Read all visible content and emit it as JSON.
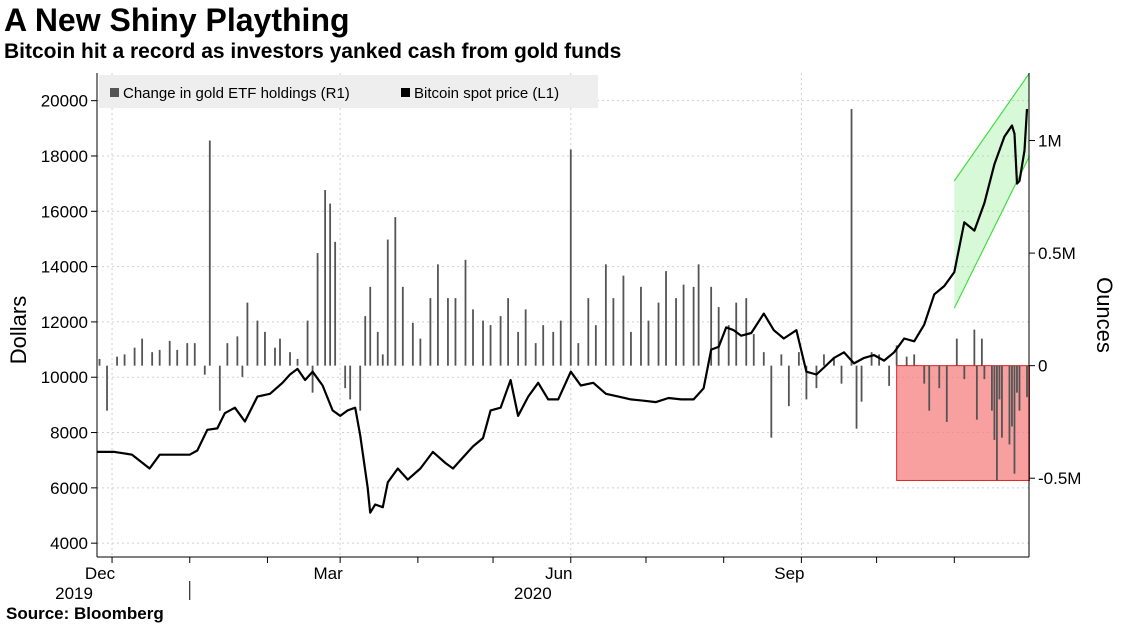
{
  "title": "A New Shiny Plaything",
  "subtitle": "Bitcoin hit a record as investors yanked cash from gold funds",
  "source": "Source: Bloomberg",
  "chart_data": {
    "type": "bar+line",
    "legend": {
      "placement": "top-left",
      "entries": [
        {
          "label": "Change in gold ETF holdings (R1)",
          "color": "#555555"
        },
        {
          "label": "Bitcoin spot price (L1)",
          "color": "#000000"
        }
      ]
    },
    "left_axis": {
      "label": "Dollars",
      "range": [
        3500,
        21000
      ],
      "ticks": [
        4000,
        6000,
        8000,
        10000,
        12000,
        14000,
        16000,
        18000,
        20000
      ]
    },
    "right_axis": {
      "label": "Ounces",
      "range": [
        -0.85,
        1.3
      ],
      "ticks": [
        {
          "value": -0.5,
          "label": "-0.5M"
        },
        {
          "value": 0,
          "label": "0"
        },
        {
          "value": 0.5,
          "label": "0.5M"
        },
        {
          "value": 1,
          "label": "1M"
        }
      ]
    },
    "x_axis": {
      "start": "2019-11-25",
      "end": "2020-11-30",
      "month_labels": [
        {
          "date": "2019-12-01",
          "label": "Dec"
        },
        {
          "date": "2020-03-01",
          "label": "Mar"
        },
        {
          "date": "2020-06-01",
          "label": "Jun"
        },
        {
          "date": "2020-09-01",
          "label": "Sep"
        }
      ],
      "year_labels": [
        {
          "date": "2019-12-01",
          "label": "2019"
        },
        {
          "date": "2020-06-01",
          "label": "2020"
        }
      ]
    },
    "grid": true,
    "series": [
      {
        "name": "Bitcoin spot price (L1)",
        "axis": "left",
        "type": "line",
        "color": "#000000",
        "points": [
          [
            "2019-11-25",
            7300
          ],
          [
            "2019-12-02",
            7300
          ],
          [
            "2019-12-09",
            7200
          ],
          [
            "2019-12-16",
            6700
          ],
          [
            "2019-12-20",
            7200
          ],
          [
            "2019-12-25",
            7200
          ],
          [
            "2020-01-01",
            7200
          ],
          [
            "2020-01-04",
            7350
          ],
          [
            "2020-01-08",
            8100
          ],
          [
            "2020-01-12",
            8150
          ],
          [
            "2020-01-15",
            8700
          ],
          [
            "2020-01-19",
            8900
          ],
          [
            "2020-01-23",
            8400
          ],
          [
            "2020-01-28",
            9300
          ],
          [
            "2020-02-02",
            9400
          ],
          [
            "2020-02-07",
            9800
          ],
          [
            "2020-02-10",
            10100
          ],
          [
            "2020-02-13",
            10300
          ],
          [
            "2020-02-16",
            9900
          ],
          [
            "2020-02-19",
            10200
          ],
          [
            "2020-02-23",
            9700
          ],
          [
            "2020-02-27",
            8800
          ],
          [
            "2020-03-01",
            8600
          ],
          [
            "2020-03-04",
            8800
          ],
          [
            "2020-03-07",
            8900
          ],
          [
            "2020-03-09",
            7900
          ],
          [
            "2020-03-12",
            6000
          ],
          [
            "2020-03-13",
            5100
          ],
          [
            "2020-03-15",
            5400
          ],
          [
            "2020-03-18",
            5300
          ],
          [
            "2020-03-20",
            6200
          ],
          [
            "2020-03-24",
            6700
          ],
          [
            "2020-03-28",
            6300
          ],
          [
            "2020-04-02",
            6700
          ],
          [
            "2020-04-07",
            7300
          ],
          [
            "2020-04-12",
            6900
          ],
          [
            "2020-04-15",
            6700
          ],
          [
            "2020-04-19",
            7100
          ],
          [
            "2020-04-23",
            7500
          ],
          [
            "2020-04-27",
            7800
          ],
          [
            "2020-04-30",
            8800
          ],
          [
            "2020-05-04",
            8900
          ],
          [
            "2020-05-08",
            9900
          ],
          [
            "2020-05-11",
            8600
          ],
          [
            "2020-05-15",
            9300
          ],
          [
            "2020-05-19",
            9800
          ],
          [
            "2020-05-23",
            9200
          ],
          [
            "2020-05-27",
            9200
          ],
          [
            "2020-06-01",
            10200
          ],
          [
            "2020-06-05",
            9700
          ],
          [
            "2020-06-10",
            9800
          ],
          [
            "2020-06-15",
            9400
          ],
          [
            "2020-06-20",
            9300
          ],
          [
            "2020-06-25",
            9200
          ],
          [
            "2020-06-30",
            9150
          ],
          [
            "2020-07-05",
            9100
          ],
          [
            "2020-07-10",
            9250
          ],
          [
            "2020-07-15",
            9200
          ],
          [
            "2020-07-20",
            9200
          ],
          [
            "2020-07-24",
            9600
          ],
          [
            "2020-07-27",
            11000
          ],
          [
            "2020-07-30",
            11100
          ],
          [
            "2020-08-02",
            11800
          ],
          [
            "2020-08-05",
            11700
          ],
          [
            "2020-08-08",
            11500
          ],
          [
            "2020-08-12",
            11600
          ],
          [
            "2020-08-17",
            12300
          ],
          [
            "2020-08-21",
            11700
          ],
          [
            "2020-08-25",
            11400
          ],
          [
            "2020-08-30",
            11700
          ],
          [
            "2020-09-03",
            10200
          ],
          [
            "2020-09-07",
            10100
          ],
          [
            "2020-09-10",
            10350
          ],
          [
            "2020-09-14",
            10700
          ],
          [
            "2020-09-18",
            10900
          ],
          [
            "2020-09-22",
            10500
          ],
          [
            "2020-09-26",
            10700
          ],
          [
            "2020-09-30",
            10800
          ],
          [
            "2020-10-04",
            10600
          ],
          [
            "2020-10-08",
            10900
          ],
          [
            "2020-10-12",
            11400
          ],
          [
            "2020-10-16",
            11300
          ],
          [
            "2020-10-20",
            11900
          ],
          [
            "2020-10-24",
            13000
          ],
          [
            "2020-10-28",
            13300
          ],
          [
            "2020-11-01",
            13800
          ],
          [
            "2020-11-05",
            15600
          ],
          [
            "2020-11-09",
            15300
          ],
          [
            "2020-11-13",
            16300
          ],
          [
            "2020-11-17",
            17700
          ],
          [
            "2020-11-21",
            18700
          ],
          [
            "2020-11-24",
            19100
          ],
          [
            "2020-11-25",
            18800
          ],
          [
            "2020-11-26",
            17000
          ],
          [
            "2020-11-27",
            17100
          ],
          [
            "2020-11-29",
            18200
          ],
          [
            "2020-11-30",
            19700
          ]
        ]
      },
      {
        "name": "Change in gold ETF holdings (R1)",
        "axis": "right",
        "type": "bar",
        "color": "#555555",
        "points": [
          [
            "2019-11-26",
            0.03
          ],
          [
            "2019-11-29",
            -0.2
          ],
          [
            "2019-12-03",
            0.04
          ],
          [
            "2019-12-06",
            0.05
          ],
          [
            "2019-12-10",
            0.08
          ],
          [
            "2019-12-13",
            0.12
          ],
          [
            "2019-12-17",
            0.06
          ],
          [
            "2019-12-20",
            0.07
          ],
          [
            "2019-12-24",
            0.11
          ],
          [
            "2019-12-27",
            0.07
          ],
          [
            "2019-12-31",
            0.1
          ],
          [
            "2020-01-03",
            0.1
          ],
          [
            "2020-01-07",
            -0.04
          ],
          [
            "2020-01-09",
            1.0
          ],
          [
            "2020-01-13",
            -0.2
          ],
          [
            "2020-01-16",
            0.1
          ],
          [
            "2020-01-20",
            0.13
          ],
          [
            "2020-01-22",
            -0.05
          ],
          [
            "2020-01-24",
            0.28
          ],
          [
            "2020-01-28",
            0.2
          ],
          [
            "2020-01-31",
            0.15
          ],
          [
            "2020-02-04",
            0.08
          ],
          [
            "2020-02-06",
            0.12
          ],
          [
            "2020-02-10",
            0.06
          ],
          [
            "2020-02-13",
            0.03
          ],
          [
            "2020-02-17",
            0.2
          ],
          [
            "2020-02-19",
            -0.12
          ],
          [
            "2020-02-21",
            0.5
          ],
          [
            "2020-02-24",
            0.78
          ],
          [
            "2020-02-26",
            0.72
          ],
          [
            "2020-02-28",
            0.55
          ],
          [
            "2020-03-03",
            -0.1
          ],
          [
            "2020-03-05",
            -0.15
          ],
          [
            "2020-03-09",
            -0.2
          ],
          [
            "2020-03-11",
            0.22
          ],
          [
            "2020-03-13",
            0.35
          ],
          [
            "2020-03-16",
            0.15
          ],
          [
            "2020-03-18",
            0.05
          ],
          [
            "2020-03-20",
            0.56
          ],
          [
            "2020-03-23",
            0.66
          ],
          [
            "2020-03-26",
            0.35
          ],
          [
            "2020-03-30",
            0.19
          ],
          [
            "2020-04-02",
            0.12
          ],
          [
            "2020-04-06",
            0.3
          ],
          [
            "2020-04-09",
            0.45
          ],
          [
            "2020-04-13",
            0.3
          ],
          [
            "2020-04-16",
            0.3
          ],
          [
            "2020-04-20",
            0.47
          ],
          [
            "2020-04-23",
            0.25
          ],
          [
            "2020-04-27",
            0.2
          ],
          [
            "2020-04-30",
            0.18
          ],
          [
            "2020-05-04",
            0.22
          ],
          [
            "2020-05-07",
            0.3
          ],
          [
            "2020-05-11",
            0.15
          ],
          [
            "2020-05-14",
            0.25
          ],
          [
            "2020-05-18",
            0.1
          ],
          [
            "2020-05-21",
            0.18
          ],
          [
            "2020-05-25",
            0.15
          ],
          [
            "2020-05-28",
            0.2
          ],
          [
            "2020-06-01",
            0.96
          ],
          [
            "2020-06-04",
            0.1
          ],
          [
            "2020-06-08",
            0.3
          ],
          [
            "2020-06-11",
            0.18
          ],
          [
            "2020-06-15",
            0.45
          ],
          [
            "2020-06-18",
            0.3
          ],
          [
            "2020-06-22",
            0.4
          ],
          [
            "2020-06-25",
            0.15
          ],
          [
            "2020-06-29",
            0.35
          ],
          [
            "2020-07-02",
            0.2
          ],
          [
            "2020-07-06",
            0.28
          ],
          [
            "2020-07-09",
            0.42
          ],
          [
            "2020-07-13",
            0.3
          ],
          [
            "2020-07-16",
            0.36
          ],
          [
            "2020-07-20",
            0.35
          ],
          [
            "2020-07-22",
            0.45
          ],
          [
            "2020-07-27",
            0.35
          ],
          [
            "2020-07-30",
            0.26
          ],
          [
            "2020-08-03",
            0.18
          ],
          [
            "2020-08-06",
            0.28
          ],
          [
            "2020-08-10",
            0.3
          ],
          [
            "2020-08-13",
            0.14
          ],
          [
            "2020-08-17",
            0.06
          ],
          [
            "2020-08-20",
            -0.32
          ],
          [
            "2020-08-24",
            0.05
          ],
          [
            "2020-08-27",
            -0.18
          ],
          [
            "2020-08-31",
            0.06
          ],
          [
            "2020-09-03",
            -0.15
          ],
          [
            "2020-09-07",
            -0.1
          ],
          [
            "2020-09-10",
            0.05
          ],
          [
            "2020-09-14",
            0.03
          ],
          [
            "2020-09-17",
            -0.08
          ],
          [
            "2020-09-21",
            1.14
          ],
          [
            "2020-09-23",
            -0.28
          ],
          [
            "2020-09-25",
            -0.16
          ],
          [
            "2020-09-29",
            0.06
          ],
          [
            "2020-10-02",
            0.05
          ],
          [
            "2020-10-06",
            -0.09
          ],
          [
            "2020-10-09",
            0.09
          ],
          [
            "2020-10-13",
            0.04
          ],
          [
            "2020-10-16",
            0.05
          ],
          [
            "2020-10-20",
            -0.08
          ],
          [
            "2020-10-22",
            -0.2
          ],
          [
            "2020-10-26",
            -0.1
          ],
          [
            "2020-10-29",
            -0.25
          ],
          [
            "2020-11-02",
            0.12
          ],
          [
            "2020-11-05",
            -0.06
          ],
          [
            "2020-11-09",
            0.16
          ],
          [
            "2020-11-10",
            -0.24
          ],
          [
            "2020-11-12",
            0.12
          ],
          [
            "2020-11-13",
            -0.06
          ],
          [
            "2020-11-16",
            -0.2
          ],
          [
            "2020-11-17",
            -0.33
          ],
          [
            "2020-11-18",
            -0.51
          ],
          [
            "2020-11-19",
            -0.15
          ],
          [
            "2020-11-20",
            -0.32
          ],
          [
            "2020-11-23",
            -0.35
          ],
          [
            "2020-11-24",
            -0.27
          ],
          [
            "2020-11-25",
            -0.48
          ],
          [
            "2020-11-26",
            -0.12
          ],
          [
            "2020-11-27",
            -0.2
          ],
          [
            "2020-11-30",
            -0.14
          ]
        ]
      }
    ],
    "annotations": [
      {
        "type": "channel",
        "color": "#90ee90",
        "lower_left": [
          "2020-11-01",
          12500
        ],
        "upper_left": [
          "2020-11-01",
          17100
        ],
        "lower_right": [
          "2020-12-01",
          18000
        ],
        "upper_right": [
          "2020-12-01",
          21000
        ]
      },
      {
        "type": "box",
        "color": "#f58080",
        "from": "2020-10-09",
        "to": "2020-12-01",
        "y_range": [
          -0.51,
          0
        ]
      }
    ]
  }
}
